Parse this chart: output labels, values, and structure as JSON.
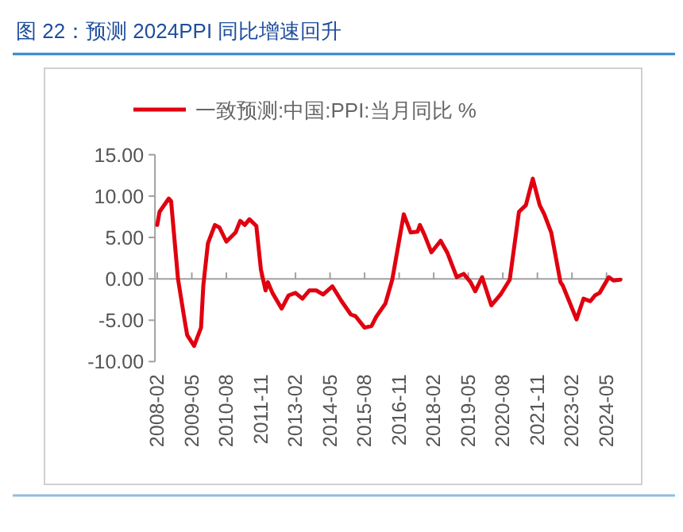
{
  "chart_data": {
    "type": "line",
    "title": "图 22：预测 2024PPI 同比增速回升",
    "x": [
      "2008-02",
      "2008-03",
      "2008-07",
      "2008-08",
      "2008-11",
      "2009-02",
      "2009-03",
      "2009-06",
      "2009-09",
      "2009-10",
      "2009-12",
      "2010-03",
      "2010-05",
      "2010-08",
      "2010-12",
      "2011-02",
      "2011-04",
      "2011-06",
      "2011-09",
      "2011-11",
      "2012-01",
      "2012-02",
      "2012-04",
      "2012-08",
      "2012-11",
      "2013-02",
      "2013-05",
      "2013-08",
      "2013-11",
      "2014-02",
      "2014-06",
      "2014-10",
      "2015-02",
      "2015-04",
      "2015-08",
      "2015-11",
      "2016-01",
      "2016-05",
      "2016-08",
      "2017-01",
      "2017-04",
      "2017-07",
      "2017-08",
      "2017-10",
      "2018-01",
      "2018-05",
      "2018-08",
      "2018-12",
      "2019-03",
      "2019-06",
      "2019-08",
      "2019-11",
      "2020-03",
      "2020-07",
      "2020-11",
      "2021-03",
      "2021-06",
      "2021-09",
      "2021-12",
      "2022-02",
      "2022-05",
      "2022-09",
      "2022-10",
      "2023-04",
      "2023-07",
      "2023-10",
      "2023-12",
      "2024-02",
      "2024-06",
      "2024-08",
      "2024-11"
    ],
    "series": [
      {
        "name": "一致预测:中国:PPI:当月同比 %",
        "color": "#e0000f",
        "values": [
          6.5,
          8.1,
          9.7,
          9.4,
          0,
          -5.2,
          -6.8,
          -8.1,
          -5.9,
          -0.8,
          4.3,
          6.5,
          6.2,
          4.5,
          5.6,
          7.0,
          6.5,
          7.2,
          6.4,
          1.1,
          -1.4,
          -0.4,
          -1.7,
          -3.6,
          -2.0,
          -1.7,
          -2.4,
          -1.4,
          -1.4,
          -1.9,
          -0.9,
          -2.7,
          -4.3,
          -4.5,
          -5.9,
          -5.7,
          -4.6,
          -3.0,
          -0.1,
          7.8,
          5.6,
          5.7,
          6.5,
          5.3,
          3.2,
          4.6,
          3.1,
          0.2,
          0.6,
          -0.4,
          -1.5,
          0.2,
          -3.2,
          -1.9,
          -0.1,
          8.1,
          8.9,
          12.1,
          8.9,
          7.8,
          5.6,
          -0.4,
          -0.8,
          -4.9,
          -2.4,
          -2.7,
          -2.0,
          -1.7,
          0.2,
          -0.2,
          -0.1
        ]
      }
    ],
    "xlim": [
      "2008-01",
      "2024-12"
    ],
    "xticks": [
      "2008-02",
      "2009-05",
      "2010-08",
      "2011-11",
      "2013-02",
      "2014-05",
      "2015-08",
      "2016-11",
      "2018-02",
      "2019-05",
      "2020-08",
      "2021-11",
      "2023-02",
      "2024-05"
    ],
    "ylim": [
      -10,
      15
    ],
    "yticks": [
      {
        "value": -10,
        "label": "-10.00"
      },
      {
        "value": -5,
        "label": "-5.00"
      },
      {
        "value": 0,
        "label": "0.00"
      },
      {
        "value": 5,
        "label": "5.00"
      },
      {
        "value": 10,
        "label": "10.00"
      },
      {
        "value": 15,
        "label": "15.00"
      }
    ],
    "legend": "top"
  }
}
